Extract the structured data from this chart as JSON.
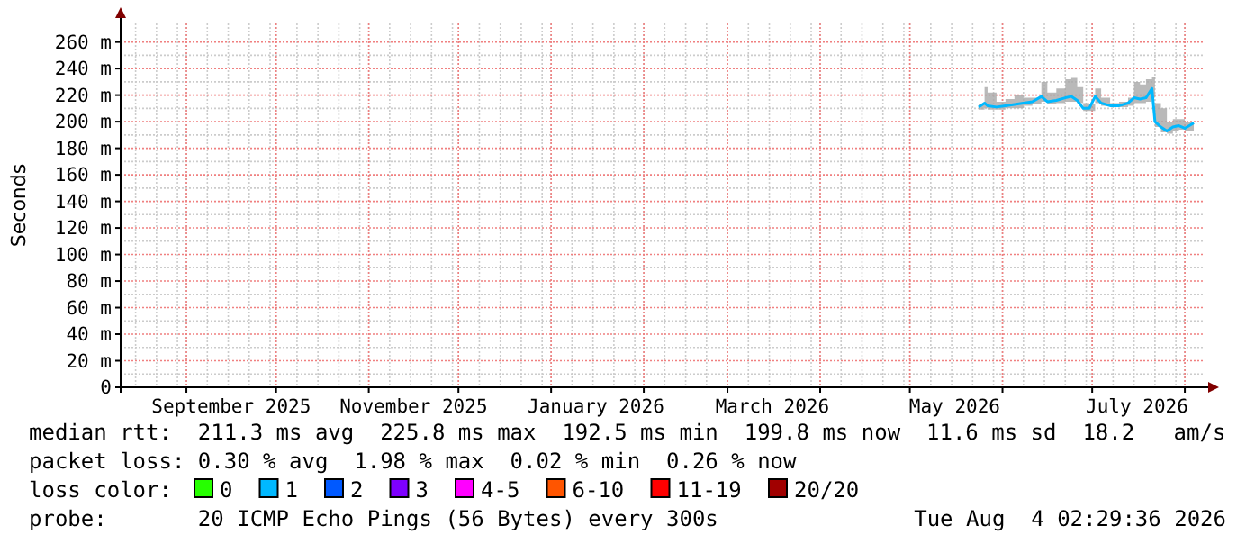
{
  "chart_data": {
    "type": "line",
    "ylabel": "Seconds",
    "xlim": [
      "2025-08-10",
      "2026-08-07"
    ],
    "xticks": [
      {
        "value": "2025-09-01",
        "label": null
      },
      {
        "value": "2025-09-16",
        "label": "September 2025"
      },
      {
        "value": "2025-10-01",
        "label": null
      },
      {
        "value": "2025-11-01",
        "label": null
      },
      {
        "value": "2025-11-16",
        "label": "November 2025"
      },
      {
        "value": "2025-12-01",
        "label": null
      },
      {
        "value": "2026-01-01",
        "label": null
      },
      {
        "value": "2026-01-16",
        "label": "January 2026"
      },
      {
        "value": "2026-02-01",
        "label": null
      },
      {
        "value": "2026-03-01",
        "label": null
      },
      {
        "value": "2026-03-16",
        "label": "March 2026"
      },
      {
        "value": "2026-04-01",
        "label": null
      },
      {
        "value": "2026-05-01",
        "label": null
      },
      {
        "value": "2026-05-16",
        "label": "May 2026"
      },
      {
        "value": "2026-06-01",
        "label": null
      },
      {
        "value": "2026-07-01",
        "label": null
      },
      {
        "value": "2026-07-16",
        "label": "July 2026"
      },
      {
        "value": "2026-08-01",
        "label": null
      }
    ],
    "ylim": [
      0,
      274
    ],
    "yticks": [
      0,
      {
        "value": 20,
        "label": "20 m"
      },
      {
        "value": 40,
        "label": "40 m"
      },
      {
        "value": 60,
        "label": "60 m"
      },
      {
        "value": 80,
        "label": "80 m"
      },
      {
        "value": 100,
        "label": "100 m"
      },
      {
        "value": 120,
        "label": "120 m"
      },
      {
        "value": 140,
        "label": "140 m"
      },
      {
        "value": 160,
        "label": "160 m"
      },
      {
        "value": 180,
        "label": "180 m"
      },
      {
        "value": 200,
        "label": "200 m"
      },
      {
        "value": 220,
        "label": "220 m"
      },
      {
        "value": 240,
        "label": "240 m"
      },
      {
        "value": 260,
        "label": "260 m"
      }
    ],
    "grid": true,
    "x": [
      "2026-05-24",
      "2026-05-26",
      "2026-05-27",
      "2026-05-30",
      "2026-06-02",
      "2026-06-05",
      "2026-06-08",
      "2026-06-11",
      "2026-06-14",
      "2026-06-16",
      "2026-06-19",
      "2026-06-22",
      "2026-06-24",
      "2026-06-26",
      "2026-06-28",
      "2026-06-30",
      "2026-07-02",
      "2026-07-04",
      "2026-07-07",
      "2026-07-10",
      "2026-07-13",
      "2026-07-15",
      "2026-07-17",
      "2026-07-19",
      "2026-07-21",
      "2026-07-22",
      "2026-07-24",
      "2026-07-26",
      "2026-07-28",
      "2026-07-30",
      "2026-08-01",
      "2026-08-04"
    ],
    "series": [
      {
        "color": "#00b8ff",
        "values": [
          211,
          214,
          212,
          211,
          212,
          213,
          214,
          215,
          219,
          215,
          216,
          218,
          219,
          216,
          210,
          210,
          219,
          214,
          212,
          212,
          214,
          218,
          217,
          218,
          225,
          200,
          196,
          193,
          196,
          197,
          195,
          199
        ],
        "lower": [
          209,
          210,
          209,
          209,
          210,
          210,
          212,
          213,
          215,
          213,
          214,
          215,
          215,
          214,
          208,
          208,
          214,
          212,
          211,
          211,
          212,
          214,
          214,
          215,
          218,
          196,
          192,
          191,
          193,
          194,
          193,
          195
        ],
        "upper": [
          213,
          226,
          222,
          215,
          217,
          220,
          218,
          218,
          230,
          222,
          225,
          232,
          233,
          226,
          214,
          213,
          225,
          218,
          214,
          215,
          218,
          230,
          228,
          232,
          234,
          214,
          210,
          200,
          202,
          202,
          200,
          204
        ]
      }
    ],
    "annotations": [
      "median rtt:  211.3 ms avg  225.8 ms max  192.5 ms min  199.8 ms now  11.6 ms sd  18.2   am/s",
      "packet loss: 0.30 % avg  1.98 % max  0.02 % min  0.26 % now",
      "loss color:",
      "0",
      "1",
      "2",
      "3",
      "4-5",
      "6-10",
      "11-19",
      "20/20",
      "probe:       20 ICMP Echo Pings (56 Bytes) every 300s",
      "Tue Aug  4 02:29:36 2026"
    ]
  }
}
